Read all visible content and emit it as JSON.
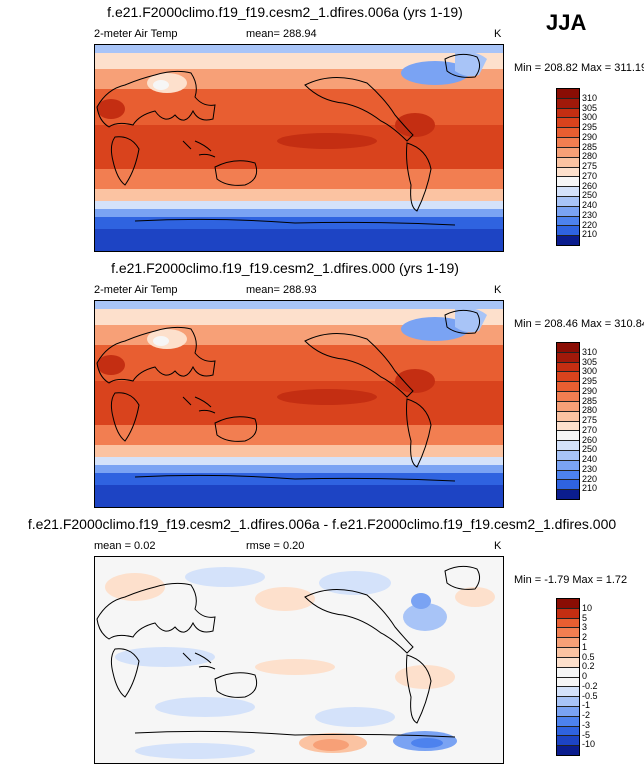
{
  "season": "JJA",
  "colors": {
    "abs_scale": [
      "#0b1d8e",
      "#1d44c4",
      "#2f63e0",
      "#4d82ee",
      "#7aa3f3",
      "#a8c4f7",
      "#d4e2fa",
      "#f6f6f6",
      "#fde0cc",
      "#fbc3a2",
      "#f7a077",
      "#f27e51",
      "#e85e31",
      "#d9431d",
      "#c42e12",
      "#a1190a",
      "#8a0d04"
    ],
    "diff_scale": [
      "#0b1d8e",
      "#1d44c4",
      "#2f63e0",
      "#4d82ee",
      "#7aa3f3",
      "#a8c4f7",
      "#d4e2fa",
      "#f6f6f6",
      "#fde0cc",
      "#fbc3a2",
      "#f7a077",
      "#f27e51",
      "#e85e31",
      "#c42e12",
      "#8a0d04"
    ],
    "land_outline": "#000000"
  },
  "panels": [
    {
      "title": "f.e21.F2000climo.f19_f19.cesm2_1.dfires.006a (yrs 1-19)",
      "variable": "2-meter Air Temp",
      "stat": "mean= 288.94",
      "units": "K",
      "minmax": "Min = 208.82 Max = 311.19",
      "colorbar_labels": [
        "310",
        "305",
        "300",
        "295",
        "290",
        "285",
        "280",
        "275",
        "270",
        "260",
        "250",
        "240",
        "230",
        "220",
        "210"
      ]
    },
    {
      "title": "f.e21.F2000climo.f19_f19.cesm2_1.dfires.000 (yrs 1-19)",
      "variable": "2-meter Air Temp",
      "stat": "mean= 288.93",
      "units": "K",
      "minmax": "Min = 208.46 Max = 310.84",
      "colorbar_labels": [
        "310",
        "305",
        "300",
        "295",
        "290",
        "285",
        "280",
        "275",
        "270",
        "260",
        "250",
        "240",
        "230",
        "220",
        "210"
      ]
    },
    {
      "title": "f.e21.F2000climo.f19_f19.cesm2_1.dfires.006a - f.e21.F2000climo.f19_f19.cesm2_1.dfires.000",
      "variable": "mean =  0.02",
      "stat": "rmse =  0.20",
      "units": "K",
      "minmax": "Min =  -1.79 Max =  1.72",
      "colorbar_labels": [
        "10",
        "5",
        "3",
        "2",
        "1",
        "0.5",
        "0.2",
        "0",
        "-0.2",
        "-0.5",
        "-1",
        "-2",
        "-3",
        "-5",
        "-10"
      ]
    }
  ]
}
